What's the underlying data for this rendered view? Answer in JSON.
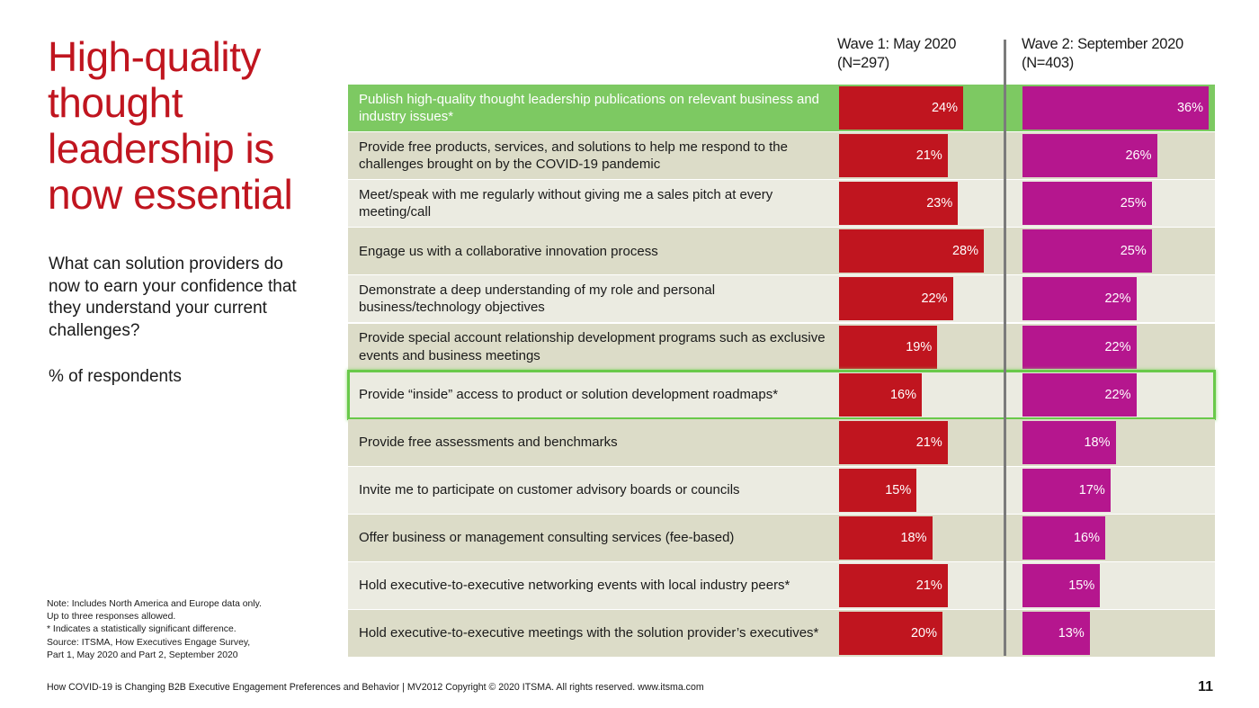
{
  "title": "High-quality thought leadership is now essential",
  "question": "What can solution providers do now to earn your confidence that they understand your current challenges?",
  "respondents": "% of respondents",
  "note_lines": [
    "Note: Includes North America and Europe data only.",
    "Up to three responses allowed.",
    "* Indicates a statistically significant difference.",
    "Source: ITSMA, How Executives Engage Survey,",
    "Part 1, May 2020 and Part 2, September 2020"
  ],
  "footer": "How COVID-19 is Changing B2B Executive Engagement Preferences and Behavior | MV2012 Copyright © 2020 ITSMA. All rights reserved.  www.itsma.com",
  "page_number": "11",
  "colors": {
    "title": "#c0151f",
    "wave1": "#c0151f",
    "wave2": "#b5168e",
    "row_light": "#ebebe1",
    "row_dark": "#dcdcc8",
    "highlight_green": "#7dc962",
    "highlight_border": "#69c94a"
  },
  "chart_data": {
    "type": "bar",
    "orientation": "horizontal",
    "unit": "%",
    "xlim": [
      0,
      40
    ],
    "categories": [
      "Publish high-quality thought leadership publications on relevant business and industry issues*",
      "Provide free products, services, and solutions to help me respond to the challenges brought on by the COVID-19 pandemic",
      "Meet/speak with me regularly without giving me a sales pitch at every meeting/call",
      "Engage us with a collaborative innovation process",
      "Demonstrate a deep understanding of my role and personal business/technology objectives",
      "Provide special account relationship development programs such as exclusive events and business meetings",
      "Provide “inside” access to product or solution development roadmaps*",
      "Provide free assessments and benchmarks",
      "Invite me to participate on customer advisory boards or councils",
      "Offer business or management consulting services (fee-based)",
      "Hold executive-to-executive networking events with local industry peers*",
      "Hold executive-to-executive meetings with the solution provider’s executives*"
    ],
    "series": [
      {
        "name": "Wave 1: May 2020",
        "n_label": "(N=297)",
        "values": [
          24,
          21,
          23,
          28,
          22,
          19,
          16,
          21,
          15,
          18,
          21,
          20
        ]
      },
      {
        "name": "Wave 2: September 2020",
        "n_label": "(N=403)",
        "values": [
          36,
          26,
          25,
          25,
          22,
          22,
          22,
          18,
          17,
          16,
          15,
          13
        ]
      }
    ],
    "highlighted_rows": {
      "filled": [
        0
      ],
      "outlined": [
        6
      ]
    }
  }
}
